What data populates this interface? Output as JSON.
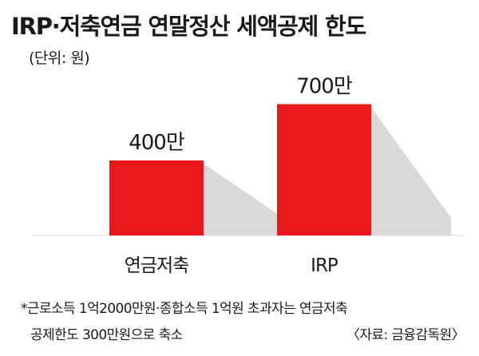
{
  "chart_data": {
    "type": "bar",
    "title": "IRP·저축연금 연말정산 세액공제 한도",
    "unit_label": "(단위: 원)",
    "categories": [
      "연금저축",
      "IRP"
    ],
    "values": [
      400,
      700
    ],
    "value_labels": [
      "400만",
      "700만"
    ],
    "ylim": [
      0,
      800
    ],
    "grid": false,
    "legend": "none",
    "colors": {
      "bar": "#e8181c",
      "shadow": "#d9d9d9",
      "baseline": "#d9d9d9"
    }
  },
  "notes": {
    "footnote_line1": "*근로소득 1억2000만원·종합소득 1억원 초과자는 연금저축",
    "footnote_line2": "공제한도 300만원으로 축소",
    "source": "〈자료: 금융감독원〉"
  }
}
